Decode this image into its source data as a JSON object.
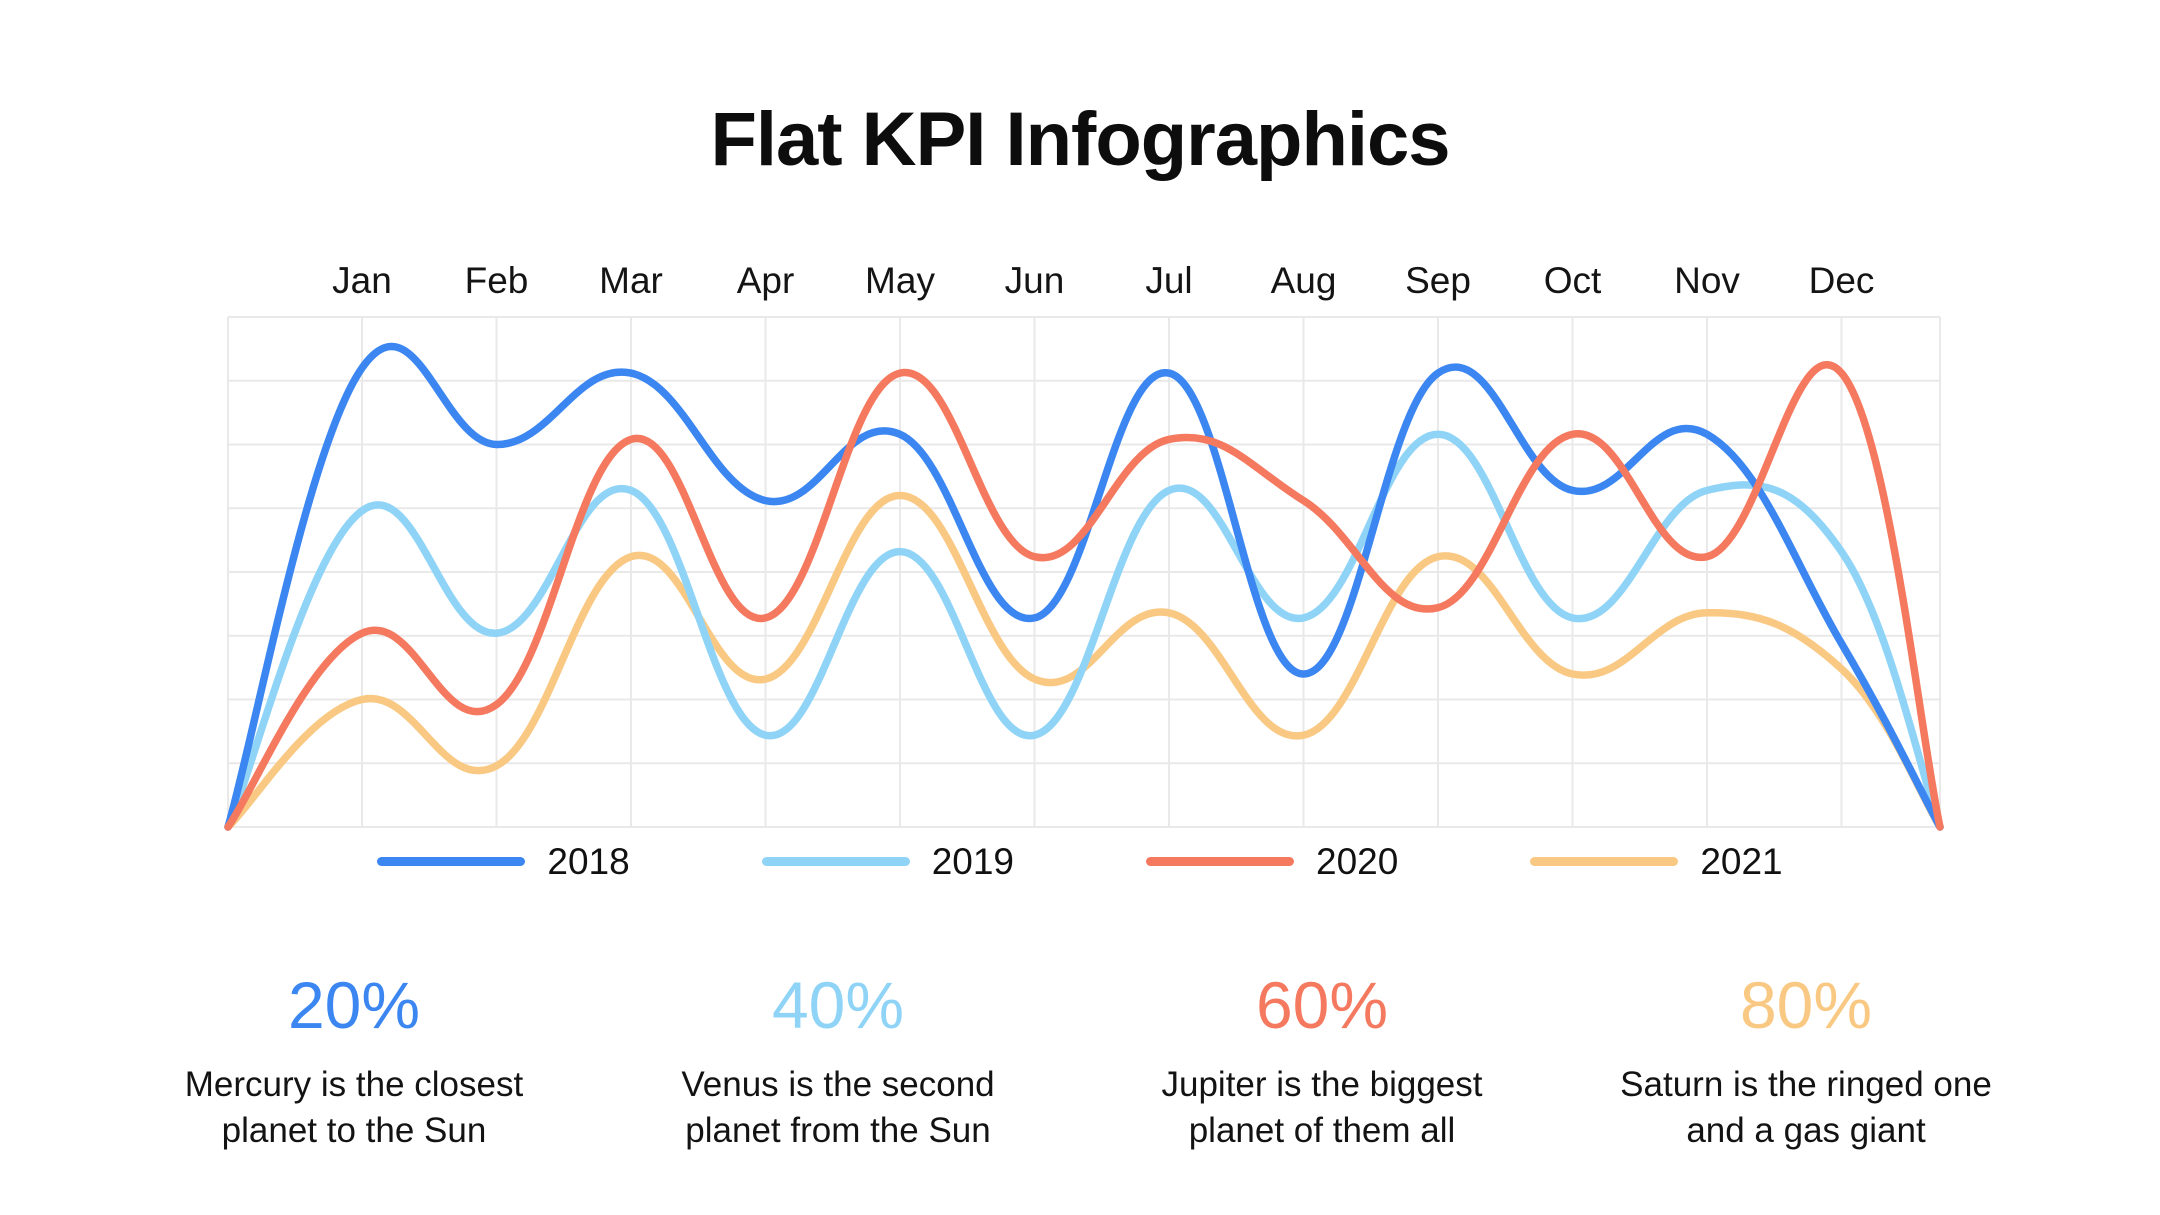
{
  "title": "Flat KPI Infographics",
  "chart_data": {
    "type": "line",
    "title": "Flat KPI Infographics",
    "categories": [
      "Jan",
      "Feb",
      "Mar",
      "Apr",
      "May",
      "Jun",
      "Jul",
      "Aug",
      "Sep",
      "Oct",
      "Nov",
      "Dec"
    ],
    "series": [
      {
        "name": "2018",
        "color": "#3B86F1",
        "values": [
          90,
          75,
          89,
          64,
          77,
          41,
          89,
          30,
          89,
          66,
          77,
          36
        ]
      },
      {
        "name": "2019",
        "color": "#8FD4F7",
        "values": [
          62,
          38,
          66,
          18,
          54,
          18,
          66,
          41,
          77,
          41,
          66,
          54
        ]
      },
      {
        "name": "2020",
        "color": "#F4795F",
        "values": [
          38,
          24,
          76,
          41,
          89,
          53,
          76,
          64,
          43,
          77,
          53,
          89
        ]
      },
      {
        "name": "2021",
        "color": "#F9C983",
        "values": [
          25,
          12,
          53,
          29,
          65,
          29,
          42,
          18,
          53,
          30,
          42,
          31
        ]
      }
    ],
    "endpoints_zero": true,
    "ylim": [
      0,
      100
    ],
    "xlabel": "",
    "ylabel": "",
    "grid": true,
    "legend_position": "bottom",
    "curve": "smooth"
  },
  "kpis": [
    {
      "value": "20%",
      "color": "#3B86F1",
      "description": "Mercury is the closest\nplanet to the Sun"
    },
    {
      "value": "40%",
      "color": "#8FD4F7",
      "description": "Venus is the second\nplanet from the Sun"
    },
    {
      "value": "60%",
      "color": "#F4795F",
      "description": "Jupiter is the biggest\nplanet of them all"
    },
    {
      "value": "80%",
      "color": "#F9C983",
      "description": "Saturn is the ringed one\nand a gas giant"
    }
  ],
  "colors": {
    "grid": "#E9E9E9",
    "text": "#111111",
    "background": "#FFFFFF"
  }
}
